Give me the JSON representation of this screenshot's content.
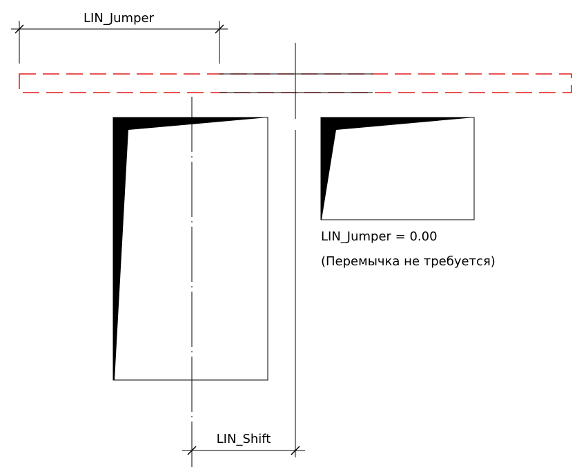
{
  "dimensions": {
    "jumper_label": "LIN_Jumper",
    "shift_label": "LIN_Shift"
  },
  "note": {
    "line1": "LIN_Jumper = 0.00",
    "line2": "(Перемычка не требуется)"
  },
  "colors": {
    "lintel_dashed": "#e01818",
    "lines": "#000000",
    "background": "#ffffff"
  }
}
